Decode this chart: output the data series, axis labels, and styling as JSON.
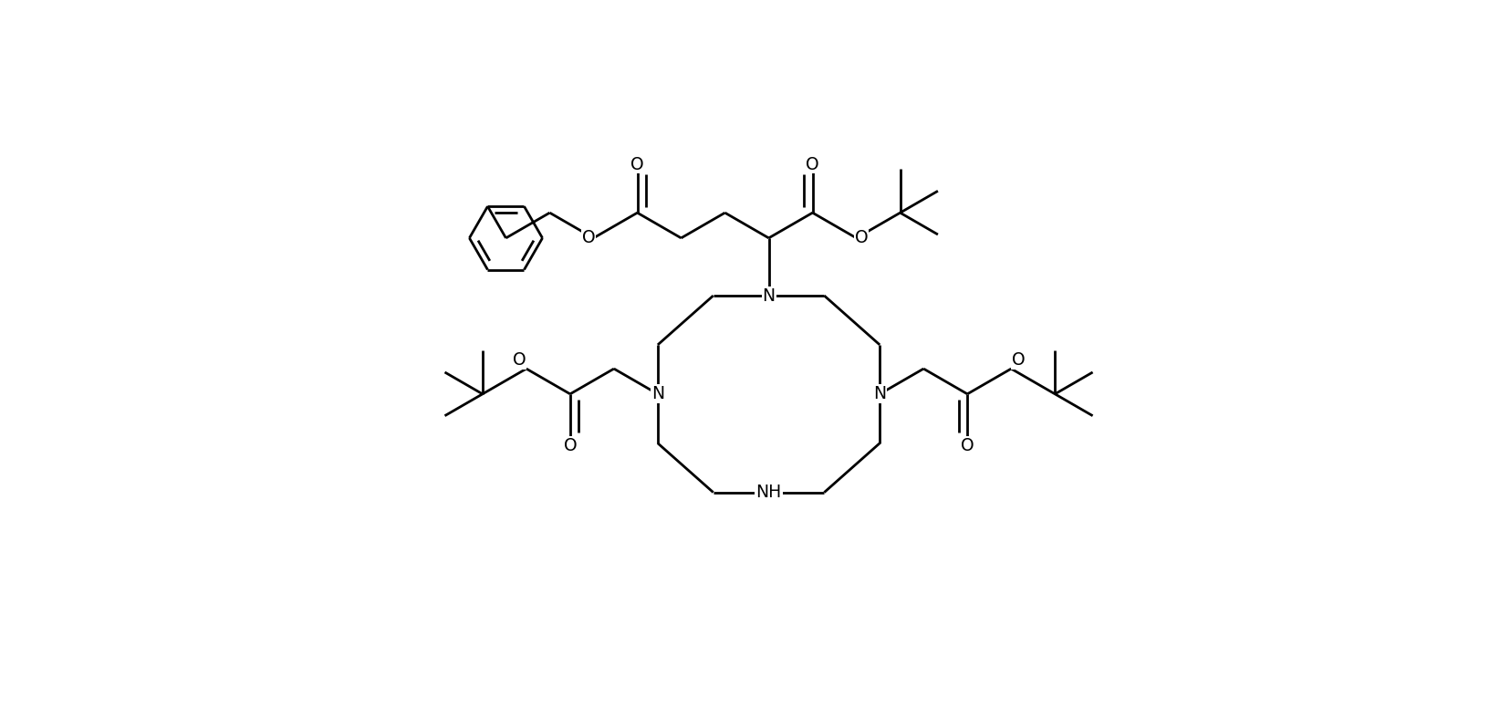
{
  "background_color": "#ffffff",
  "line_color": "#000000",
  "line_width": 2.0,
  "font_size": 13.5,
  "fig_width": 16.44,
  "fig_height": 7.88,
  "dpi": 100,
  "xlim": [
    0,
    16.44
  ],
  "ylim": [
    0,
    7.88
  ]
}
